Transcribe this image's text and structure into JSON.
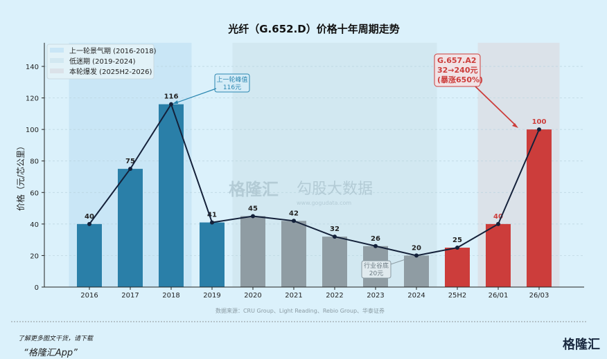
{
  "chart_data": {
    "type": "bar",
    "title": "光纤（G.652.D）价格十年周期走势",
    "ylabel": "价格（元/芯公里）",
    "xlabel": "",
    "ylim": [
      0,
      155
    ],
    "yticks": [
      0,
      20,
      40,
      60,
      80,
      100,
      120,
      140
    ],
    "grid": true,
    "legend_position": "top-left",
    "categories": [
      "2016",
      "2017",
      "2018",
      "2019",
      "2020",
      "2021",
      "2022",
      "2023",
      "2024",
      "25H2",
      "26/01",
      "26/03"
    ],
    "values": [
      40,
      75,
      116,
      41,
      45,
      42,
      32,
      26,
      20,
      25,
      40,
      100
    ],
    "bar_phase": [
      "up",
      "up",
      "up",
      "up",
      "low",
      "low",
      "low",
      "low",
      "low",
      "boom",
      "boom",
      "boom"
    ],
    "line_overlay": true,
    "colors": {
      "up": "#2a7fa8",
      "low": "#8f9ca3",
      "boom": "#cc3d3b",
      "line": "#14213a"
    },
    "bands": [
      {
        "name": "上一轮景气期 (2016-2018)",
        "from": "2016",
        "to": "2018",
        "color": "#c9e6f6"
      },
      {
        "name": "低迷期 (2019-2024)",
        "from": "2020",
        "to": "2024",
        "color": "#d2e8f1"
      },
      {
        "name": "本轮爆发 (2025H2-2026)",
        "from": "26/01",
        "to": "26/03",
        "color": "#dbe2e9"
      }
    ],
    "annotations": [
      {
        "text": [
          "上一轮峰值",
          "116元"
        ],
        "category": "2018",
        "color": "#2a86b0"
      },
      {
        "text": [
          "行业谷底",
          "20元"
        ],
        "category": "2024",
        "color": "#6b7a82"
      },
      {
        "text": [
          "G.657.A2",
          "32→240元",
          "(暴涨650%)"
        ],
        "category": "26/03",
        "color": "#cc3d3b"
      }
    ],
    "source": "数据来源：CRU Group、Light Reading、Rebio Group、华泰证券"
  },
  "watermark": {
    "brand": "格隆汇",
    "sub": "勾股大数据",
    "url": "www.gogudata.com"
  },
  "footer": {
    "line1": "了解更多图文干货，请下载",
    "line2": "“格隆汇App”",
    "logo": "格隆汇"
  }
}
